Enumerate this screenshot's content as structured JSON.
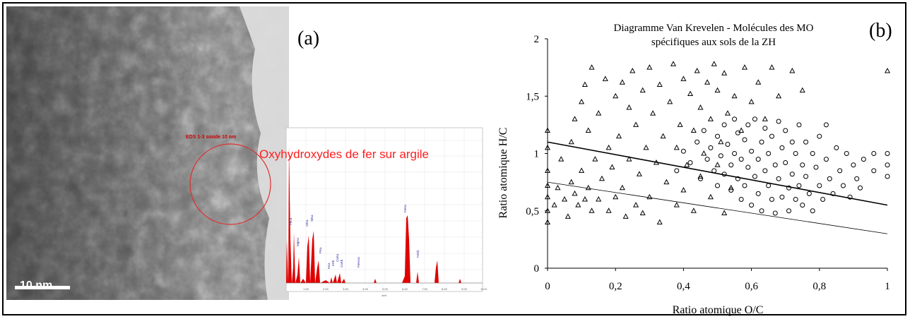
{
  "panel_a": {
    "label": "(a)",
    "scale_bar": "10 nm",
    "eds_zone": "EDS 1-3 sonde 10 nm",
    "annotation": "Oxyhydroxydes de fer sur argile",
    "eds_peaks": [
      "FeLa",
      "MgKa",
      "AlKa",
      "SiKa",
      "PKa",
      "KKa",
      "KKb",
      "CaKa",
      "CaKb",
      "FeKesc",
      "FeKa",
      "FeKb"
    ],
    "eds_axis_ticks": [
      "1.00",
      "2.00",
      "3.00",
      "4.00",
      "5.00",
      "6.00",
      "7.00",
      "8.00",
      "9.00",
      "10.00"
    ],
    "eds_axis_unit": "keV"
  },
  "panel_b": {
    "label": "(b)"
  },
  "chart_data": {
    "type": "scatter",
    "title": [
      "Diagramme  Van Krevelen - Molécules des MO",
      "spécifiques aux sols de la ZH"
    ],
    "xlabel": "Ratio atomique O/C",
    "ylabel": "Ratio atomique H/C",
    "xlim": [
      0,
      1
    ],
    "ylim": [
      0,
      2
    ],
    "xticks": [
      "0",
      "0,2",
      "0,4",
      "0,6",
      "0,8",
      "1"
    ],
    "yticks": [
      "0",
      "0,5",
      "1",
      "1,5",
      "2"
    ],
    "grid": false,
    "series": [
      {
        "marker": "triangle",
        "points": [
          [
            0,
            0.4
          ],
          [
            0,
            0.5
          ],
          [
            0,
            0.62
          ],
          [
            0,
            0.72
          ],
          [
            0,
            0.85
          ],
          [
            0,
            1.05
          ],
          [
            0,
            1.2
          ],
          [
            0.02,
            0.55
          ],
          [
            0.03,
            0.7
          ],
          [
            0.04,
            0.95
          ],
          [
            0.05,
            0.6
          ],
          [
            0.06,
            0.45
          ],
          [
            0.07,
            0.75
          ],
          [
            0.07,
            1.1
          ],
          [
            0.08,
            0.65
          ],
          [
            0.08,
            1.3
          ],
          [
            0.09,
            0.55
          ],
          [
            0.1,
            0.85
          ],
          [
            0.1,
            1.45
          ],
          [
            0.11,
            0.6
          ],
          [
            0.11,
            1.6
          ],
          [
            0.12,
            0.7
          ],
          [
            0.12,
            1.2
          ],
          [
            0.13,
            0.5
          ],
          [
            0.13,
            1.75
          ],
          [
            0.14,
            0.95
          ],
          [
            0.15,
            0.6
          ],
          [
            0.15,
            1.35
          ],
          [
            0.16,
            0.78
          ],
          [
            0.17,
            1.65
          ],
          [
            0.18,
            0.5
          ],
          [
            0.18,
            1.05
          ],
          [
            0.19,
            0.88
          ],
          [
            0.2,
            1.5
          ],
          [
            0.2,
            0.62
          ],
          [
            0.21,
            1.15
          ],
          [
            0.22,
            0.7
          ],
          [
            0.22,
            1.62
          ],
          [
            0.23,
            0.45
          ],
          [
            0.24,
            0.95
          ],
          [
            0.24,
            1.4
          ],
          [
            0.25,
            1.72
          ],
          [
            0.26,
            0.55
          ],
          [
            0.26,
            1.25
          ],
          [
            0.27,
            0.82
          ],
          [
            0.28,
            1.55
          ],
          [
            0.28,
            0.48
          ],
          [
            0.29,
            1.05
          ],
          [
            0.3,
            1.75
          ],
          [
            0.3,
            0.62
          ],
          [
            0.31,
            1.35
          ],
          [
            0.32,
            0.92
          ],
          [
            0.33,
            0.4
          ],
          [
            0.33,
            1.6
          ],
          [
            0.34,
            1.15
          ],
          [
            0.35,
            0.75
          ],
          [
            0.36,
            1.45
          ],
          [
            0.37,
            1.78
          ],
          [
            0.38,
            0.55
          ],
          [
            0.38,
            1.05
          ],
          [
            0.39,
            1.25
          ],
          [
            0.4,
            0.68
          ],
          [
            0.4,
            1.65
          ],
          [
            0.41,
            0.9
          ],
          [
            0.42,
            1.52
          ],
          [
            0.43,
            0.5
          ],
          [
            0.43,
            1.2
          ],
          [
            0.44,
            1.72
          ],
          [
            0.45,
            0.8
          ],
          [
            0.45,
            1.4
          ],
          [
            0.46,
            1.0
          ],
          [
            0.47,
            1.62
          ],
          [
            0.48,
            0.62
          ],
          [
            0.48,
            1.3
          ],
          [
            0.49,
            1.78
          ],
          [
            0.5,
            0.9
          ],
          [
            0.5,
            1.55
          ],
          [
            0.51,
            1.1
          ],
          [
            0.52,
            0.48
          ],
          [
            0.52,
            1.7
          ],
          [
            0.53,
            1.35
          ],
          [
            0.54,
            0.7
          ],
          [
            0.55,
            1.5
          ],
          [
            0.57,
            1.2
          ],
          [
            0.58,
            1.75
          ],
          [
            0.6,
            1.45
          ],
          [
            0.62,
            1.62
          ],
          [
            0.64,
            1.3
          ],
          [
            0.66,
            1.75
          ],
          [
            0.68,
            1.5
          ],
          [
            0.72,
            1.72
          ],
          [
            0.75,
            1.55
          ],
          [
            1.0,
            1.72
          ]
        ]
      },
      {
        "marker": "circle",
        "points": [
          [
            0.38,
            0.85
          ],
          [
            0.4,
            1.02
          ],
          [
            0.42,
            0.92
          ],
          [
            0.44,
            1.1
          ],
          [
            0.45,
            0.78
          ],
          [
            0.46,
            1.2
          ],
          [
            0.47,
            0.95
          ],
          [
            0.48,
            1.05
          ],
          [
            0.49,
            0.85
          ],
          [
            0.5,
            1.15
          ],
          [
            0.5,
            0.72
          ],
          [
            0.51,
            0.98
          ],
          [
            0.52,
            1.25
          ],
          [
            0.52,
            0.82
          ],
          [
            0.53,
            1.08
          ],
          [
            0.54,
            0.68
          ],
          [
            0.54,
            0.9
          ],
          [
            0.55,
            1.3
          ],
          [
            0.55,
            1.0
          ],
          [
            0.56,
            0.78
          ],
          [
            0.56,
            1.18
          ],
          [
            0.57,
            0.6
          ],
          [
            0.57,
            0.95
          ],
          [
            0.58,
            1.12
          ],
          [
            0.58,
            0.72
          ],
          [
            0.59,
            1.25
          ],
          [
            0.59,
            0.88
          ],
          [
            0.6,
            1.02
          ],
          [
            0.6,
            0.55
          ],
          [
            0.61,
            0.8
          ],
          [
            0.61,
            1.3
          ],
          [
            0.62,
            0.95
          ],
          [
            0.62,
            0.65
          ],
          [
            0.63,
            1.1
          ],
          [
            0.63,
            0.5
          ],
          [
            0.64,
            0.85
          ],
          [
            0.64,
            1.22
          ],
          [
            0.65,
            0.72
          ],
          [
            0.65,
            1.0
          ],
          [
            0.66,
            0.6
          ],
          [
            0.66,
            1.15
          ],
          [
            0.67,
            0.9
          ],
          [
            0.67,
            0.48
          ],
          [
            0.68,
            1.28
          ],
          [
            0.68,
            0.78
          ],
          [
            0.69,
            1.05
          ],
          [
            0.69,
            0.62
          ],
          [
            0.7,
            0.92
          ],
          [
            0.7,
            1.2
          ],
          [
            0.71,
            0.7
          ],
          [
            0.71,
            0.5
          ],
          [
            0.72,
            1.1
          ],
          [
            0.72,
            0.82
          ],
          [
            0.73,
            0.6
          ],
          [
            0.73,
            1.0
          ],
          [
            0.74,
            1.25
          ],
          [
            0.74,
            0.72
          ],
          [
            0.75,
            0.9
          ],
          [
            0.75,
            0.55
          ],
          [
            0.76,
            1.1
          ],
          [
            0.76,
            0.8
          ],
          [
            0.77,
            0.65
          ],
          [
            0.78,
            1.0
          ],
          [
            0.78,
            0.5
          ],
          [
            0.79,
            0.88
          ],
          [
            0.8,
            1.15
          ],
          [
            0.8,
            0.72
          ],
          [
            0.81,
            0.6
          ],
          [
            0.82,
            0.95
          ],
          [
            0.82,
            1.25
          ],
          [
            0.83,
            0.78
          ],
          [
            0.84,
            0.65
          ],
          [
            0.85,
            1.05
          ],
          [
            0.86,
            0.85
          ],
          [
            0.87,
            0.72
          ],
          [
            0.88,
            1.0
          ],
          [
            0.89,
            0.62
          ],
          [
            0.9,
            0.9
          ],
          [
            0.91,
            0.78
          ],
          [
            0.92,
            0.7
          ],
          [
            0.93,
            0.95
          ],
          [
            0.96,
            1.0
          ],
          [
            0.96,
            0.85
          ],
          [
            1.0,
            1.0
          ],
          [
            1.0,
            0.9
          ],
          [
            1.0,
            0.8
          ]
        ]
      }
    ],
    "trendlines": [
      {
        "from": [
          0,
          1.1
        ],
        "to": [
          1,
          0.55
        ]
      },
      {
        "from": [
          0,
          0.75
        ],
        "to": [
          1,
          0.3
        ]
      }
    ]
  }
}
